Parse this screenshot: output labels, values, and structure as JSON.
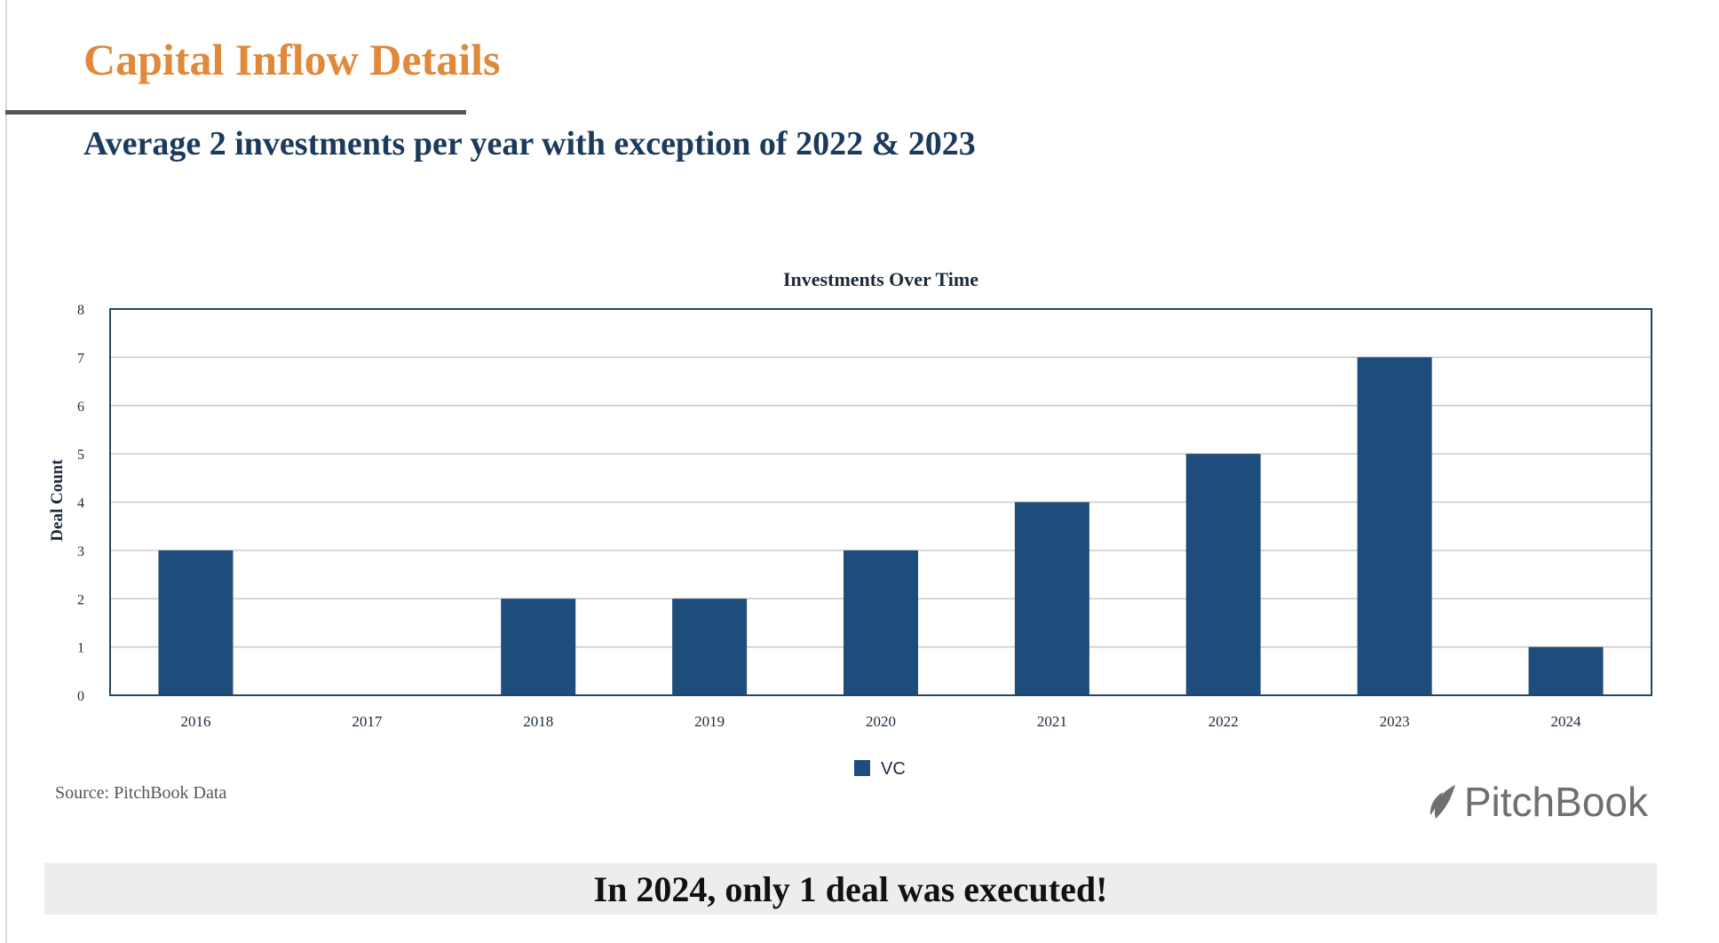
{
  "header": {
    "title": "Capital Inflow Details",
    "subtitle": "Average 2 investments per year with exception of 2022 & 2023"
  },
  "chart_data": {
    "type": "bar",
    "title": "Investments Over Time",
    "xlabel": "",
    "ylabel": "Deal Count",
    "categories": [
      "2016",
      "2017",
      "2018",
      "2019",
      "2020",
      "2021",
      "2022",
      "2023",
      "2024"
    ],
    "series": [
      {
        "name": "VC",
        "values": [
          3,
          0,
          2,
          2,
          3,
          4,
          5,
          7,
          1
        ]
      }
    ],
    "ylim": [
      0,
      8
    ],
    "yticks": [
      "0",
      "1",
      "2",
      "3",
      "4",
      "5",
      "6",
      "7",
      "8"
    ],
    "grid": true,
    "legend": "bottom-center",
    "colors": {
      "bar": "#1e4d7b",
      "frame": "#24475f",
      "grid": "#c9c9c9"
    }
  },
  "footer": {
    "source": "Source: PitchBook Data",
    "brand": "PitchBook",
    "brand_icon": "pitchbook-leaf-icon",
    "callout": "In 2024, only 1 deal was executed!"
  }
}
